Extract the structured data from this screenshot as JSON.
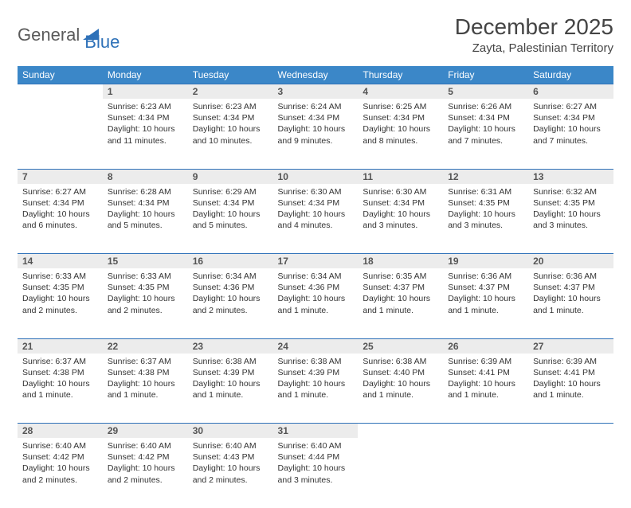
{
  "logo": {
    "text1": "General",
    "text2": "Blue"
  },
  "title": "December 2025",
  "location": "Zayta, Palestinian Territory",
  "colors": {
    "header_bg": "#3b87c8",
    "border": "#2e71b8",
    "daynum_bg": "#ececec",
    "text": "#333333"
  },
  "weekdays": [
    "Sunday",
    "Monday",
    "Tuesday",
    "Wednesday",
    "Thursday",
    "Friday",
    "Saturday"
  ],
  "weeks": [
    [
      null,
      {
        "n": "1",
        "sr": "6:23 AM",
        "ss": "4:34 PM",
        "dl": "10 hours and 11 minutes."
      },
      {
        "n": "2",
        "sr": "6:23 AM",
        "ss": "4:34 PM",
        "dl": "10 hours and 10 minutes."
      },
      {
        "n": "3",
        "sr": "6:24 AM",
        "ss": "4:34 PM",
        "dl": "10 hours and 9 minutes."
      },
      {
        "n": "4",
        "sr": "6:25 AM",
        "ss": "4:34 PM",
        "dl": "10 hours and 8 minutes."
      },
      {
        "n": "5",
        "sr": "6:26 AM",
        "ss": "4:34 PM",
        "dl": "10 hours and 7 minutes."
      },
      {
        "n": "6",
        "sr": "6:27 AM",
        "ss": "4:34 PM",
        "dl": "10 hours and 7 minutes."
      }
    ],
    [
      {
        "n": "7",
        "sr": "6:27 AM",
        "ss": "4:34 PM",
        "dl": "10 hours and 6 minutes."
      },
      {
        "n": "8",
        "sr": "6:28 AM",
        "ss": "4:34 PM",
        "dl": "10 hours and 5 minutes."
      },
      {
        "n": "9",
        "sr": "6:29 AM",
        "ss": "4:34 PM",
        "dl": "10 hours and 5 minutes."
      },
      {
        "n": "10",
        "sr": "6:30 AM",
        "ss": "4:34 PM",
        "dl": "10 hours and 4 minutes."
      },
      {
        "n": "11",
        "sr": "6:30 AM",
        "ss": "4:34 PM",
        "dl": "10 hours and 3 minutes."
      },
      {
        "n": "12",
        "sr": "6:31 AM",
        "ss": "4:35 PM",
        "dl": "10 hours and 3 minutes."
      },
      {
        "n": "13",
        "sr": "6:32 AM",
        "ss": "4:35 PM",
        "dl": "10 hours and 3 minutes."
      }
    ],
    [
      {
        "n": "14",
        "sr": "6:33 AM",
        "ss": "4:35 PM",
        "dl": "10 hours and 2 minutes."
      },
      {
        "n": "15",
        "sr": "6:33 AM",
        "ss": "4:35 PM",
        "dl": "10 hours and 2 minutes."
      },
      {
        "n": "16",
        "sr": "6:34 AM",
        "ss": "4:36 PM",
        "dl": "10 hours and 2 minutes."
      },
      {
        "n": "17",
        "sr": "6:34 AM",
        "ss": "4:36 PM",
        "dl": "10 hours and 1 minute."
      },
      {
        "n": "18",
        "sr": "6:35 AM",
        "ss": "4:37 PM",
        "dl": "10 hours and 1 minute."
      },
      {
        "n": "19",
        "sr": "6:36 AM",
        "ss": "4:37 PM",
        "dl": "10 hours and 1 minute."
      },
      {
        "n": "20",
        "sr": "6:36 AM",
        "ss": "4:37 PM",
        "dl": "10 hours and 1 minute."
      }
    ],
    [
      {
        "n": "21",
        "sr": "6:37 AM",
        "ss": "4:38 PM",
        "dl": "10 hours and 1 minute."
      },
      {
        "n": "22",
        "sr": "6:37 AM",
        "ss": "4:38 PM",
        "dl": "10 hours and 1 minute."
      },
      {
        "n": "23",
        "sr": "6:38 AM",
        "ss": "4:39 PM",
        "dl": "10 hours and 1 minute."
      },
      {
        "n": "24",
        "sr": "6:38 AM",
        "ss": "4:39 PM",
        "dl": "10 hours and 1 minute."
      },
      {
        "n": "25",
        "sr": "6:38 AM",
        "ss": "4:40 PM",
        "dl": "10 hours and 1 minute."
      },
      {
        "n": "26",
        "sr": "6:39 AM",
        "ss": "4:41 PM",
        "dl": "10 hours and 1 minute."
      },
      {
        "n": "27",
        "sr": "6:39 AM",
        "ss": "4:41 PM",
        "dl": "10 hours and 1 minute."
      }
    ],
    [
      {
        "n": "28",
        "sr": "6:40 AM",
        "ss": "4:42 PM",
        "dl": "10 hours and 2 minutes."
      },
      {
        "n": "29",
        "sr": "6:40 AM",
        "ss": "4:42 PM",
        "dl": "10 hours and 2 minutes."
      },
      {
        "n": "30",
        "sr": "6:40 AM",
        "ss": "4:43 PM",
        "dl": "10 hours and 2 minutes."
      },
      {
        "n": "31",
        "sr": "6:40 AM",
        "ss": "4:44 PM",
        "dl": "10 hours and 3 minutes."
      },
      null,
      null,
      null
    ]
  ],
  "labels": {
    "sunrise": "Sunrise:",
    "sunset": "Sunset:",
    "daylight": "Daylight:"
  }
}
